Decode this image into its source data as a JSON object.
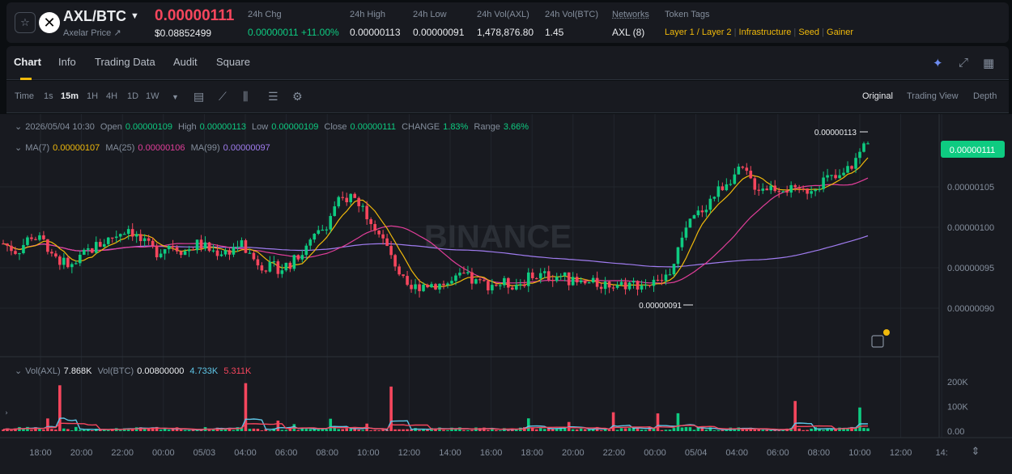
{
  "header": {
    "pair": "AXL/BTC",
    "sub_label": "Axelar Price ↗",
    "last_price": "0.00000111",
    "usd_price": "$0.08852499",
    "stats": [
      {
        "label": "24h Chg",
        "value": "0.00000011 +11.00%"
      },
      {
        "label": "24h High",
        "value": "0.00000113"
      },
      {
        "label": "24h Low",
        "value": "0.00000091"
      },
      {
        "label": "24h Vol(AXL)",
        "value": "1,478,876.80"
      },
      {
        "label": "24h Vol(BTC)",
        "value": "1.45"
      },
      {
        "label": "Networks",
        "value": "AXL (8)"
      }
    ],
    "token_tags_label": "Token Tags",
    "token_tags": [
      "Layer 1 / Layer 2",
      "Infrastructure",
      "Seed",
      "Gainer"
    ]
  },
  "tabs": [
    "Chart",
    "Info",
    "Trading Data",
    "Audit",
    "Square"
  ],
  "toolbar": {
    "intervals": [
      "Time",
      "1s",
      "15m",
      "1H",
      "4H",
      "1D",
      "1W"
    ],
    "active_interval": "15m",
    "views": [
      "Original",
      "Trading View",
      "Depth"
    ],
    "active_view": "Original"
  },
  "ohlc": {
    "date": "2026/05/04 10:30",
    "open_label": "Open",
    "open": "0.00000109",
    "high_label": "High",
    "high": "0.00000113",
    "low_label": "Low",
    "low": "0.00000109",
    "close_label": "Close",
    "close": "0.00000111",
    "change_label": "CHANGE",
    "change": "1.83%",
    "range_label": "Range",
    "range": "3.66%"
  },
  "ma": {
    "ma7_label": "MA(7)",
    "ma7": "0.00000107",
    "ma25_label": "MA(25)",
    "ma25": "0.00000106",
    "ma99_label": "MA(99)",
    "ma99": "0.00000097"
  },
  "vol": {
    "axl_label": "Vol(AXL)",
    "axl": "7.868K",
    "btc_label": "Vol(BTC)",
    "btc": "0.00800000",
    "v1": "4.733K",
    "v2": "5.311K"
  },
  "watermark": "BINANCE",
  "colors": {
    "up": "#0ecb81",
    "down": "#f6465d",
    "ma7": "#f0b90b",
    "ma25": "#e23e9a",
    "ma99": "#a07cf0",
    "vol_ma1": "#5fc7e8",
    "vol_ma2": "#f6465d"
  },
  "chart_data": {
    "type": "candlestick",
    "y_axis": {
      "ticks": [
        "0.00000105",
        "0.00000100",
        "0.00000095",
        "0.00000090"
      ],
      "ylim": [
        8.5e-07,
        1.14e-06
      ]
    },
    "x_axis": {
      "ticks": [
        "18:00",
        "20:00",
        "22:00",
        "00:00",
        "05/03",
        "04:00",
        "06:00",
        "08:00",
        "10:00",
        "12:00",
        "14:00",
        "16:00",
        "18:00",
        "20:00",
        "22:00",
        "00:00",
        "05/04",
        "04:00",
        "06:00",
        "08:00",
        "10:00",
        "12:00",
        "14:"
      ]
    },
    "last_price_label": "0.00000111",
    "high_marker": "0.00000113",
    "low_marker": "0.00000091",
    "volume_axis": {
      "ticks": [
        "200K",
        "100K",
        "0.00"
      ],
      "ylim": [
        0,
        230000
      ]
    },
    "close_series": [
      98,
      97,
      99,
      98,
      96,
      95,
      97,
      98,
      99,
      100,
      98,
      97,
      98,
      97,
      98,
      97,
      97,
      98,
      96,
      95,
      95,
      96,
      98,
      100,
      103,
      104,
      102,
      99,
      96,
      92,
      93,
      93,
      93,
      94,
      93,
      93,
      93,
      93,
      94,
      94,
      94,
      93,
      93,
      93,
      93,
      93,
      93,
      93,
      95,
      100,
      102,
      104,
      106,
      107,
      105,
      105,
      105,
      104,
      105,
      106,
      106,
      108,
      111
    ]
  }
}
